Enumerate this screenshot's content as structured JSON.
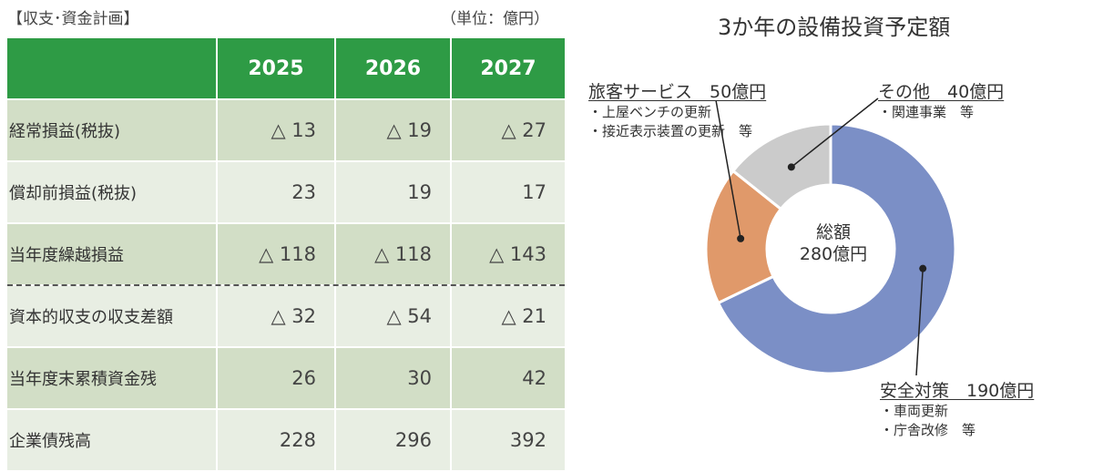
{
  "table": {
    "title": "【収支･資金計画】",
    "unit": "（単位：億円）",
    "years": [
      "2025",
      "2026",
      "2027"
    ],
    "rows": [
      {
        "label": "経常損益(税抜)",
        "values": [
          "△ 13",
          "△ 19",
          "△ 27"
        ]
      },
      {
        "label": "償却前損益(税抜)",
        "values": [
          "23",
          "19",
          "17"
        ]
      },
      {
        "label": "当年度繰越損益",
        "values": [
          "△ 118",
          "△ 118",
          "△ 143"
        ]
      },
      {
        "label": "資本的収支の収支差額",
        "values": [
          "△ 32",
          "△ 54",
          "△ 21"
        ]
      },
      {
        "label": "当年度末累積資金残",
        "values": [
          "26",
          "30",
          "42"
        ]
      },
      {
        "label": "企業債残高",
        "values": [
          "228",
          "296",
          "392"
        ]
      }
    ]
  },
  "chart_data": {
    "type": "pie",
    "title": "3か年の設備投資予定額",
    "center_label": [
      "総額",
      "280億円"
    ],
    "unit": "億円",
    "total": 280,
    "slices": [
      {
        "name": "安全対策",
        "value": 190,
        "color": "#7b8fc6",
        "label": "安全対策　190億円",
        "notes": [
          "・車両更新",
          "・庁舎改修　等"
        ]
      },
      {
        "name": "旅客サービス",
        "value": 50,
        "color": "#e0996a",
        "label": "旅客サービス　50億円",
        "notes": [
          "・上屋ベンチの更新",
          "・接近表示装置の更新　等"
        ]
      },
      {
        "name": "その他",
        "value": 40,
        "color": "#cbcbcb",
        "label": "その他　40億円",
        "notes": [
          "・関連事業　等"
        ]
      }
    ]
  }
}
